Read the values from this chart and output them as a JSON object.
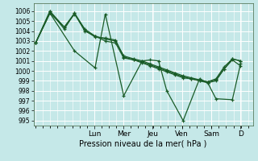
{
  "title": "",
  "xlabel": "Pression niveau de la mer( hPa )",
  "bg_color": "#c5e8e8",
  "grid_color": "#ffffff",
  "line_color": "#1a5c28",
  "ylim": [
    994.5,
    1006.8
  ],
  "yticks": [
    995,
    996,
    997,
    998,
    999,
    1000,
    1001,
    1002,
    1003,
    1004,
    1005,
    1006
  ],
  "day_labels": [
    "Lun",
    "Mer",
    "Jeu",
    "Ven",
    "Sam",
    "D"
  ],
  "day_tick_x": [
    0.286,
    0.429,
    0.571,
    0.714,
    0.857,
    1.0
  ],
  "series1_x": [
    0.0,
    0.07,
    0.14,
    0.19,
    0.24,
    0.29,
    0.34,
    0.39,
    0.43,
    0.48,
    0.52,
    0.56,
    0.6,
    0.64,
    0.68,
    0.72,
    0.76,
    0.8,
    0.84,
    0.88,
    0.92,
    0.96,
    1.0
  ],
  "series1_y": [
    1002.8,
    1005.8,
    1004.4,
    1005.7,
    1004.1,
    1003.4,
    1003.3,
    1003.1,
    1001.4,
    1001.1,
    1000.9,
    1000.6,
    1000.3,
    1000.0,
    999.7,
    999.4,
    999.2,
    999.0,
    998.9,
    999.1,
    1000.2,
    1001.1,
    1000.5
  ],
  "series2_x": [
    0.0,
    0.07,
    0.19,
    0.29,
    0.34,
    0.43,
    0.52,
    0.56,
    0.6,
    0.64,
    0.72,
    0.8,
    0.84,
    0.88,
    0.96,
    1.0
  ],
  "series2_y": [
    1002.8,
    1005.8,
    1002.0,
    1000.3,
    1005.7,
    997.5,
    1001.0,
    1001.1,
    1001.0,
    998.0,
    995.0,
    999.2,
    998.8,
    997.2,
    997.1,
    1000.7
  ],
  "series3_x": [
    0.0,
    0.07,
    0.14,
    0.19,
    0.24,
    0.29,
    0.34,
    0.39,
    0.43,
    0.48,
    0.52,
    0.56,
    0.6,
    0.64,
    0.68,
    0.72,
    0.76,
    0.8,
    0.84,
    0.88,
    0.92,
    0.96,
    1.0
  ],
  "series3_y": [
    1002.8,
    1006.0,
    1004.2,
    1005.8,
    1004.2,
    1003.5,
    1003.2,
    1003.0,
    1001.5,
    1001.2,
    1001.0,
    1000.7,
    1000.4,
    1000.1,
    999.8,
    999.5,
    999.3,
    999.1,
    998.9,
    999.2,
    1000.4,
    1001.2,
    1001.0
  ],
  "series4_x": [
    0.0,
    0.07,
    0.14,
    0.19,
    0.24,
    0.29,
    0.34,
    0.39,
    0.43,
    0.48,
    0.52,
    0.56,
    0.6,
    0.64,
    0.68,
    0.72,
    0.76,
    0.8,
    0.84,
    0.88,
    0.92,
    0.96,
    1.0
  ],
  "series4_y": [
    1002.8,
    1006.0,
    1004.4,
    1005.8,
    1004.0,
    1003.5,
    1003.0,
    1002.8,
    1001.3,
    1001.1,
    1000.8,
    1000.5,
    1000.2,
    999.9,
    999.6,
    999.3,
    999.2,
    999.0,
    998.8,
    999.0,
    1000.2,
    1001.2,
    1001.0
  ]
}
